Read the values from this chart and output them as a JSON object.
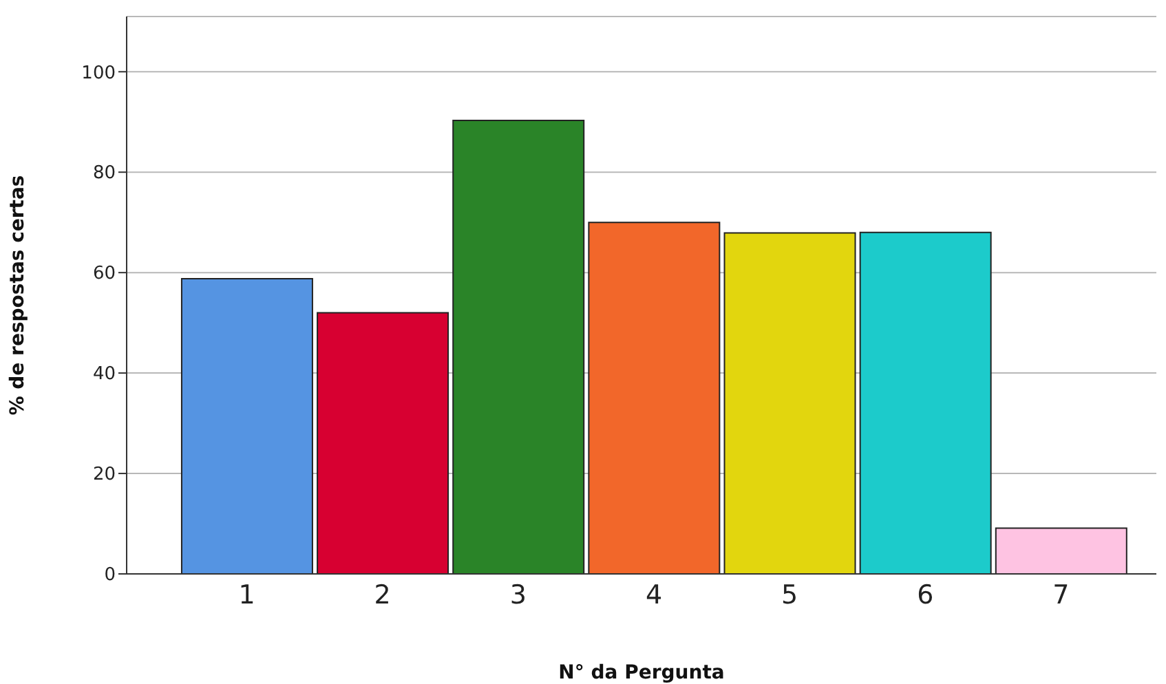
{
  "chart_data": {
    "type": "bar",
    "xlabel": "N° da Pergunta",
    "ylabel": "% de respostas certas",
    "categories": [
      "1",
      "2",
      "3",
      "4",
      "5",
      "6",
      "7"
    ],
    "values": [
      58.8,
      52,
      90.3,
      70,
      67.9,
      68,
      9.1
    ],
    "colors": [
      "#5594e2",
      "#d70031",
      "#2a8428",
      "#f2672a",
      "#e2d60e",
      "#1ccbcb",
      "#fec3e2"
    ],
    "ylim": [
      0,
      111
    ],
    "yticks": [
      0,
      20,
      40,
      60,
      80,
      100
    ],
    "grid": "y",
    "legend": false
  }
}
